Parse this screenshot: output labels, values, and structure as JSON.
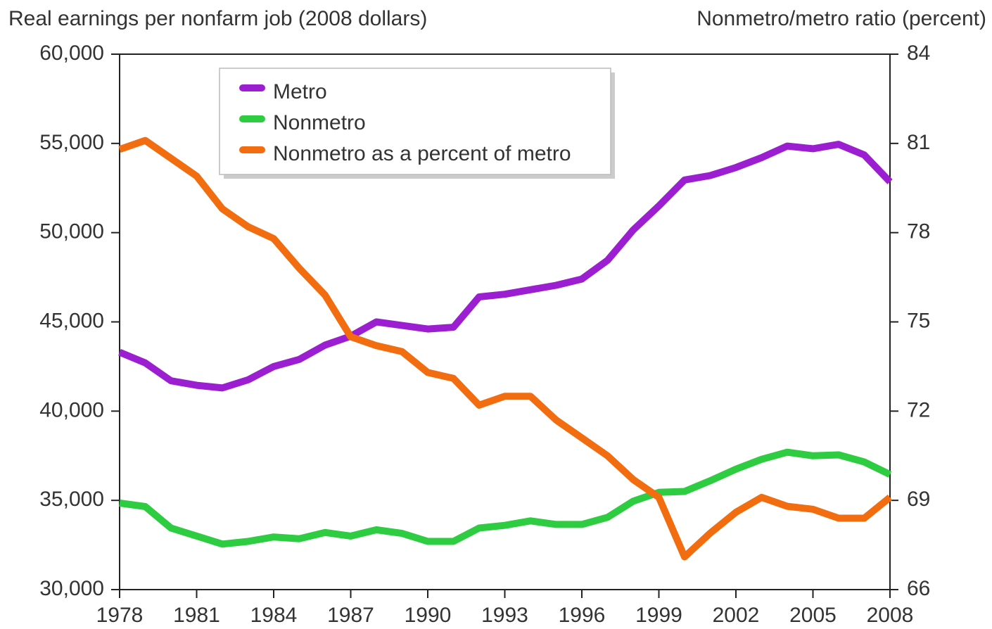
{
  "chart_data": {
    "type": "line",
    "y_label": "Real earnings per nonfarm job (2008 dollars)",
    "y2_label": "Nonmetro/metro ratio (percent)",
    "x": [
      1978,
      1979,
      1980,
      1981,
      1982,
      1983,
      1984,
      1985,
      1986,
      1987,
      1988,
      1989,
      1990,
      1991,
      1992,
      1993,
      1994,
      1995,
      1996,
      1997,
      1998,
      1999,
      2000,
      2001,
      2002,
      2003,
      2004,
      2005,
      2006,
      2007,
      2008
    ],
    "xlim": [
      1978,
      2008
    ],
    "xticks": [
      1978,
      1981,
      1984,
      1987,
      1990,
      1993,
      1996,
      1999,
      2002,
      2005,
      2008
    ],
    "ylim": [
      30000,
      60000
    ],
    "yticks": [
      {
        "value": 30000,
        "label": "30,000"
      },
      {
        "value": 35000,
        "label": "35,000"
      },
      {
        "value": 40000,
        "label": "40,000"
      },
      {
        "value": 45000,
        "label": "45,000"
      },
      {
        "value": 50000,
        "label": "50,000"
      },
      {
        "value": 55000,
        "label": "55,000"
      },
      {
        "value": 60000,
        "label": "60,000"
      }
    ],
    "y2lim": [
      66,
      84
    ],
    "y2ticks": [
      66,
      69,
      72,
      75,
      78,
      81,
      84
    ],
    "legend": "upper left",
    "series": [
      {
        "name": "Metro",
        "color": "#9b1fd1",
        "values": [
          43300,
          42700,
          41700,
          41450,
          41300,
          41750,
          42500,
          42900,
          43700,
          44200,
          45000,
          44800,
          44600,
          44700,
          46400,
          46550,
          46800,
          47050,
          47400,
          48450,
          50150,
          51500,
          52950,
          53200,
          53650,
          54200,
          54850,
          54700,
          54950,
          54350,
          52850
        ]
      },
      {
        "name": "Nonmetro",
        "color": "#2ecc40",
        "values": [
          34850,
          34650,
          33450,
          33000,
          32550,
          32700,
          32950,
          32850,
          33200,
          33000,
          33350,
          33150,
          32700,
          32700,
          33450,
          33600,
          33850,
          33650,
          33650,
          34050,
          34950,
          35450,
          35500,
          36100,
          36750,
          37300,
          37700,
          37500,
          37550,
          37150,
          36450
        ]
      },
      {
        "name": "Nonmetro as a percent of metro",
        "color": "#f26d0f",
        "axis": "y2",
        "values": [
          80.8,
          81.1,
          80.5,
          79.9,
          78.8,
          78.2,
          77.8,
          76.8,
          75.9,
          74.5,
          74.2,
          74.0,
          73.3,
          73.1,
          72.2,
          72.5,
          72.5,
          71.7,
          71.1,
          70.5,
          69.7,
          69.1,
          67.1,
          67.9,
          68.6,
          69.1,
          68.8,
          68.7,
          68.4,
          68.4,
          69.1
        ]
      }
    ]
  }
}
